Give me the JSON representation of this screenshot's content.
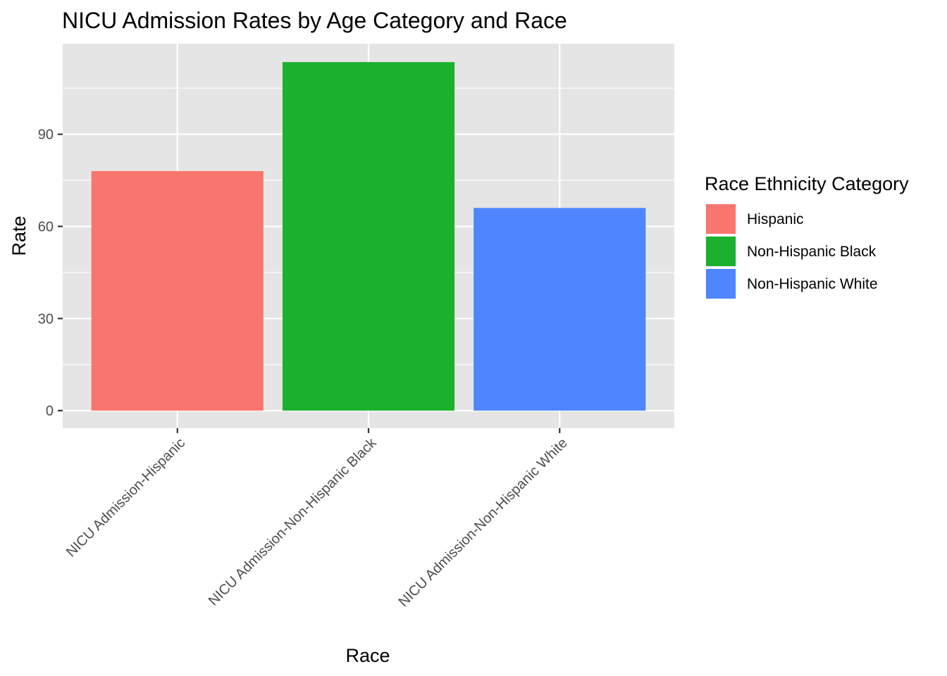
{
  "chart_data": {
    "type": "bar",
    "title": "NICU Admission Rates by Age Category and Race",
    "xlabel": "Race",
    "ylabel": "Rate",
    "categories": [
      "NICU Admission-Hispanic",
      "NICU Admission-Non-Hispanic Black",
      "NICU Admission-Non-Hispanic White"
    ],
    "values": [
      78,
      113.5,
      66
    ],
    "ylim": [
      -5.7,
      119.5
    ],
    "yticks": [
      0,
      30,
      60,
      90
    ],
    "ytick_labels": [
      "0",
      "30",
      "60",
      "90"
    ],
    "grid": true,
    "legend": {
      "title": "Race Ethnicity Category",
      "position": "right",
      "entries": [
        {
          "label": "Hispanic",
          "color": "#F8766D"
        },
        {
          "label": "Non-Hispanic Black",
          "color": "#1BB12F"
        },
        {
          "label": "Non-Hispanic White",
          "color": "#4F86FF"
        }
      ]
    },
    "colors": [
      "#F8766D",
      "#1BB12F",
      "#4F86FF"
    ],
    "panel_background": "#E5E5E5",
    "grid_color": "#FFFFFF"
  }
}
